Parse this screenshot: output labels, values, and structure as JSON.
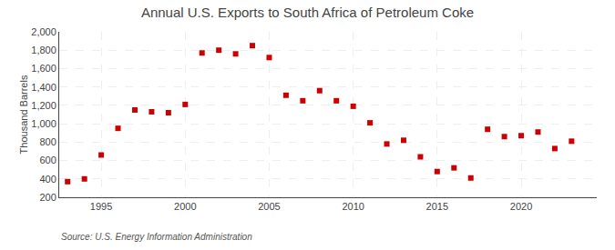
{
  "chart_data": {
    "type": "scatter",
    "title": "Annual U.S. Exports to South Africa of Petroleum Coke",
    "ylabel": "Thousand Barrels",
    "annotation": "Source: U.S. Energy Information Administration",
    "x": [
      1993,
      1994,
      1995,
      1996,
      1997,
      1998,
      1999,
      2000,
      2001,
      2002,
      2003,
      2004,
      2005,
      2006,
      2007,
      2008,
      2009,
      2010,
      2011,
      2012,
      2013,
      2014,
      2015,
      2016,
      2017,
      2018,
      2019,
      2020,
      2021,
      2022,
      2023
    ],
    "values": [
      370,
      400,
      660,
      950,
      1150,
      1130,
      1120,
      1210,
      1770,
      1800,
      1760,
      1850,
      1720,
      1310,
      1250,
      1360,
      1250,
      1190,
      1010,
      780,
      820,
      640,
      480,
      520,
      410,
      940,
      860,
      870,
      910,
      730,
      810
    ],
    "color": "#cc0000",
    "marker": "square",
    "xlim": [
      1992.5,
      2024.5
    ],
    "xticks": [
      1995,
      2000,
      2005,
      2010,
      2015,
      2020
    ],
    "ylim": [
      200,
      2000
    ],
    "yticks": [
      200,
      400,
      600,
      800,
      {
        "value": 1000,
        "label": "1,000"
      },
      {
        "value": 1200,
        "label": "1,200"
      },
      {
        "value": 1400,
        "label": "1,400"
      },
      {
        "value": 1600,
        "label": "1,600"
      },
      {
        "value": 1800,
        "label": "1,800"
      },
      {
        "value": 2000,
        "label": "2,000"
      }
    ],
    "grid": true
  }
}
